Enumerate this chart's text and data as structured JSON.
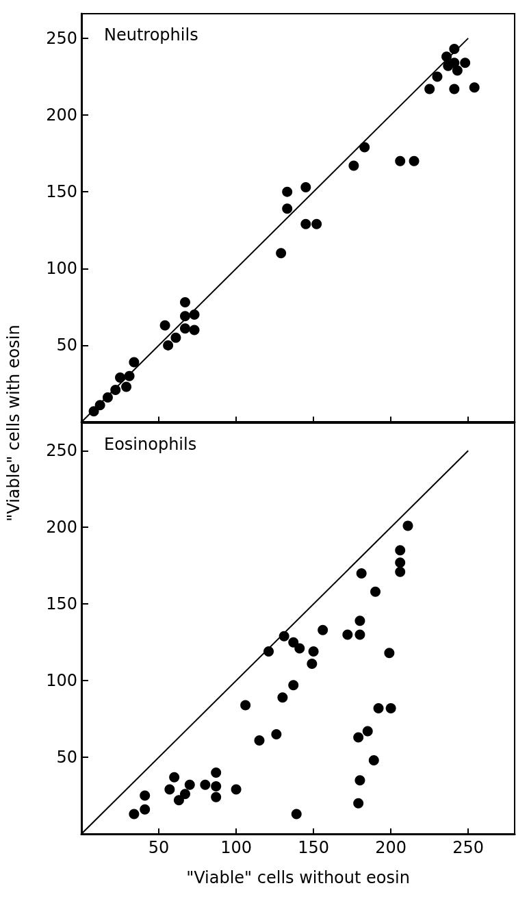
{
  "chart_data": [
    {
      "type": "scatter",
      "title": "Neutrophils",
      "ylabel": "\"Viable\" cells with eosin",
      "xlim": [
        0,
        280
      ],
      "ylim": [
        0,
        266
      ],
      "xticks": [
        50,
        100,
        150,
        200,
        250
      ],
      "yticks": [
        50,
        100,
        150,
        200,
        250
      ],
      "tick_labels": "y",
      "grid": false,
      "marker": "circle",
      "series": [
        {
          "color": "#000000",
          "x": [
            8,
            12,
            17,
            22,
            25,
            29,
            31,
            34,
            54,
            56,
            61,
            67,
            67,
            73,
            67,
            73,
            129,
            145,
            152,
            133,
            133,
            145,
            176,
            183,
            206,
            215,
            225,
            230,
            241,
            254,
            236,
            237,
            241,
            243,
            248,
            241
          ],
          "values": [
            7,
            11,
            16,
            21,
            29,
            23,
            30,
            39,
            63,
            50,
            55,
            78,
            69,
            70,
            61,
            60,
            110,
            129,
            129,
            139,
            150,
            153,
            167,
            179,
            170,
            170,
            217,
            225,
            217,
            218,
            238,
            232,
            243,
            229,
            234,
            234
          ]
        },
        {
          "type": "line",
          "color": "#000000",
          "x": [
            0,
            250
          ],
          "values": [
            0,
            250
          ],
          "line_style": "solid",
          "marker": "none"
        }
      ]
    },
    {
      "type": "scatter",
      "title": "Eosinophils",
      "xlabel": "\"Viable\" cells without eosin",
      "xlim": [
        0,
        280
      ],
      "ylim": [
        0,
        268
      ],
      "xticks": [
        50,
        100,
        150,
        200,
        250
      ],
      "yticks": [
        50,
        100,
        150,
        200,
        250
      ],
      "grid": false,
      "marker": "circle",
      "series": [
        {
          "color": "#000000",
          "x": [
            211,
            206,
            206,
            206,
            181,
            190,
            180,
            156,
            172,
            180,
            131,
            137,
            141,
            121,
            150,
            149,
            199,
            137,
            130,
            106,
            192,
            200,
            126,
            115,
            185,
            179,
            189,
            180,
            179,
            139,
            34,
            41,
            41,
            60,
            57,
            63,
            67,
            70,
            80,
            87,
            87,
            87,
            100
          ],
          "values": [
            201,
            185,
            177,
            171,
            170,
            158,
            139,
            133,
            130,
            130,
            129,
            125,
            121,
            119,
            119,
            111,
            118,
            97,
            89,
            84,
            82,
            82,
            65,
            61,
            67,
            63,
            48,
            35,
            20,
            13,
            13,
            16,
            25,
            37,
            29,
            22,
            26,
            32,
            32,
            40,
            31,
            24,
            29
          ]
        },
        {
          "type": "line",
          "color": "#000000",
          "x": [
            0,
            250
          ],
          "values": [
            0,
            250
          ],
          "line_style": "solid",
          "marker": "none"
        }
      ]
    }
  ]
}
